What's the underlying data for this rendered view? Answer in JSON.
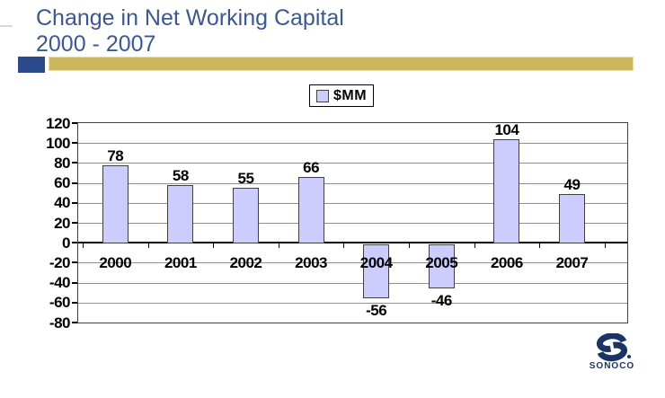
{
  "slide": {
    "title_line1": "Change in Net Working Capital",
    "title_line2": "2000 - 2007"
  },
  "legend": {
    "label": "$MM"
  },
  "chart_data": {
    "type": "bar",
    "title": "",
    "categories": [
      "2000",
      "2001",
      "2002",
      "2003",
      "2004",
      "2005",
      "2006",
      "2007"
    ],
    "series": [
      {
        "name": "$MM",
        "values": [
          78,
          58,
          55,
          66,
          -56,
          -46,
          104,
          49
        ]
      }
    ],
    "ylim": [
      -80,
      120
    ],
    "ytick_step": 20,
    "yticks": [
      120,
      100,
      80,
      60,
      40,
      20,
      0,
      -20,
      -40,
      -60,
      -80
    ],
    "grid": true,
    "data_labels": true,
    "legend_position": "top-center",
    "xlabel": "",
    "ylabel": ""
  },
  "colors": {
    "title_text": "#3A5796",
    "accent_blue": "#2B4A8C",
    "accent_gold": "#CBB65C",
    "bar_fill": "#CCCCFF",
    "bar_border": "#404040",
    "gridline": "#909090",
    "axis_line": "#000000",
    "logo_navy": "#1B3468"
  },
  "logo": {
    "text": "SONOCO"
  }
}
